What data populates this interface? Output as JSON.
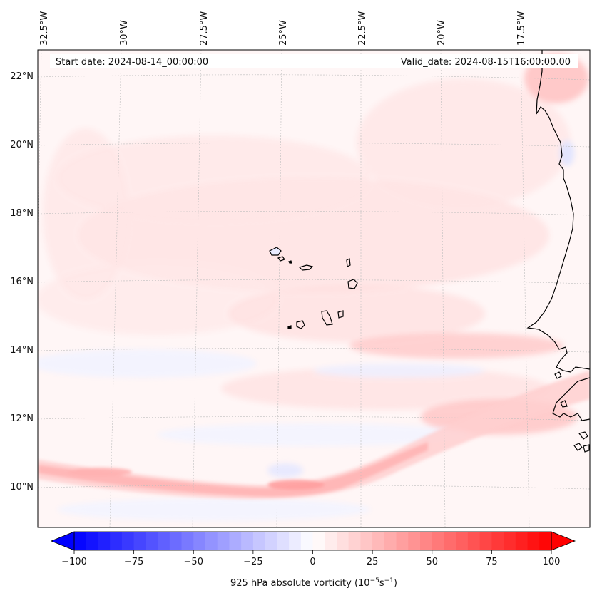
{
  "header": {
    "start_date": "Start date: 2024-08-14_00:00:00",
    "valid_date": "Valid_date: 2024-08-15T16:00:00.00"
  },
  "map": {
    "longitude_labels": [
      "32.5°W",
      "30°W",
      "27.5°W",
      "25°W",
      "22.5°W",
      "20°W",
      "17.5°W"
    ],
    "latitude_labels": [
      "22°N",
      "20°N",
      "18°N",
      "16°N",
      "14°N",
      "12°N",
      "10°N"
    ],
    "islands": "Cabo Verde",
    "coastline": "West African coast"
  },
  "colorbar": {
    "label": "925 hPa absolute vorticity (10",
    "label_exp1": "−5",
    "label_mid": "s",
    "label_exp2": "−1",
    "label_end": ")",
    "ticks": [
      "−100",
      "−75",
      "−50",
      "−25",
      "0",
      "25",
      "50",
      "75",
      "100"
    ],
    "min": -100,
    "max": 100,
    "negative_color": "#0000ff",
    "positive_color": "#ff0000"
  },
  "colors": {
    "weak_positive": "#ffe6e6",
    "moderate_positive": "#ffcccc",
    "strong_positive": "#ffb3b3",
    "weak_negative": "#eef0ff",
    "background": "#fff5f5"
  }
}
